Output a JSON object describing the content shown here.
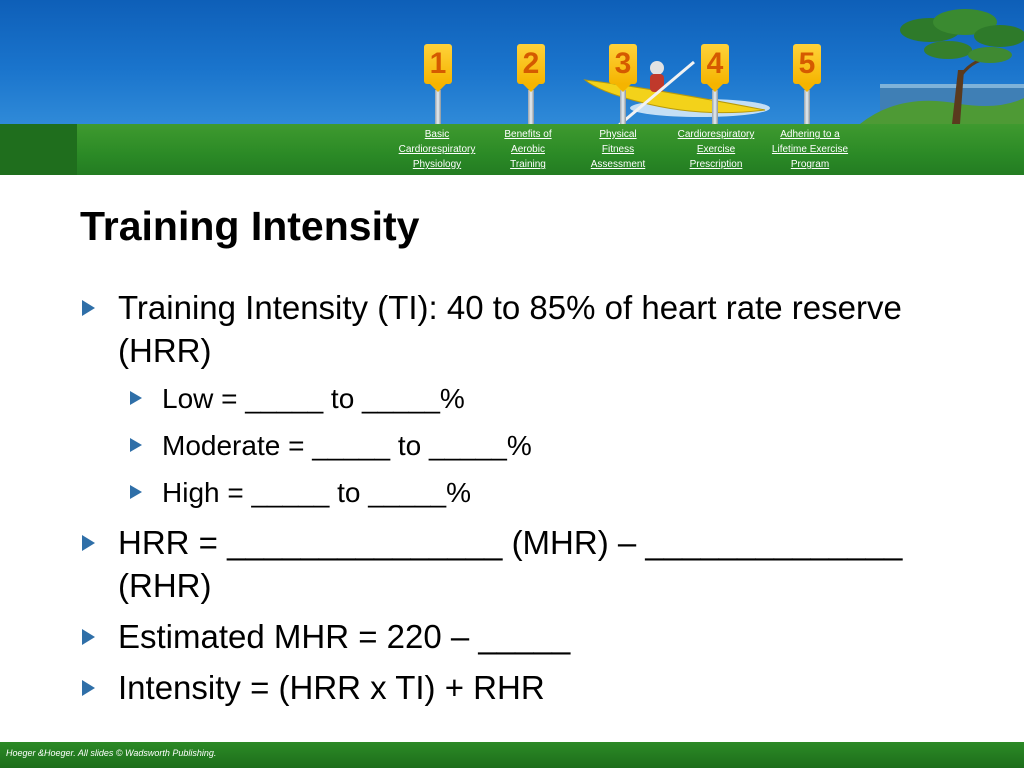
{
  "nav": {
    "items": [
      {
        "number": "1",
        "lines": [
          "Basic",
          "Cardiorespiratory",
          "Physiology"
        ]
      },
      {
        "number": "2",
        "lines": [
          "Benefits of",
          "Aerobic",
          "Training"
        ]
      },
      {
        "number": "3",
        "lines": [
          "Physical",
          "Fitness",
          "Assessment"
        ]
      },
      {
        "number": "4",
        "lines": [
          "Cardiorespiratory",
          "Exercise",
          "Prescription"
        ]
      },
      {
        "number": "5",
        "lines": [
          "Adhering to a",
          "Lifetime Exercise",
          "Program"
        ]
      }
    ]
  },
  "slide": {
    "title": "Training Intensity",
    "bullets": [
      "Training Intensity (TI): 40 to 85% of heart rate reserve (HRR)",
      "Low = _____ to _____%",
      "Moderate = _____ to _____%",
      "High = _____ to _____%",
      "HRR = _______________ (MHR) – ______________ (RHR)",
      "Estimated MHR = 220 – _____",
      "Intensity = (HRR x TI) + RHR"
    ]
  },
  "footer": {
    "credit": "Hoeger &Hoeger. All slides © Wadsworth Publishing."
  },
  "colors": {
    "banner_blue": "#1a74cc",
    "header_green": "#2b8a26",
    "bullet_blue": "#2f6fa8",
    "sign_yellow": "#f5b400",
    "sign_number": "#d55a00"
  }
}
